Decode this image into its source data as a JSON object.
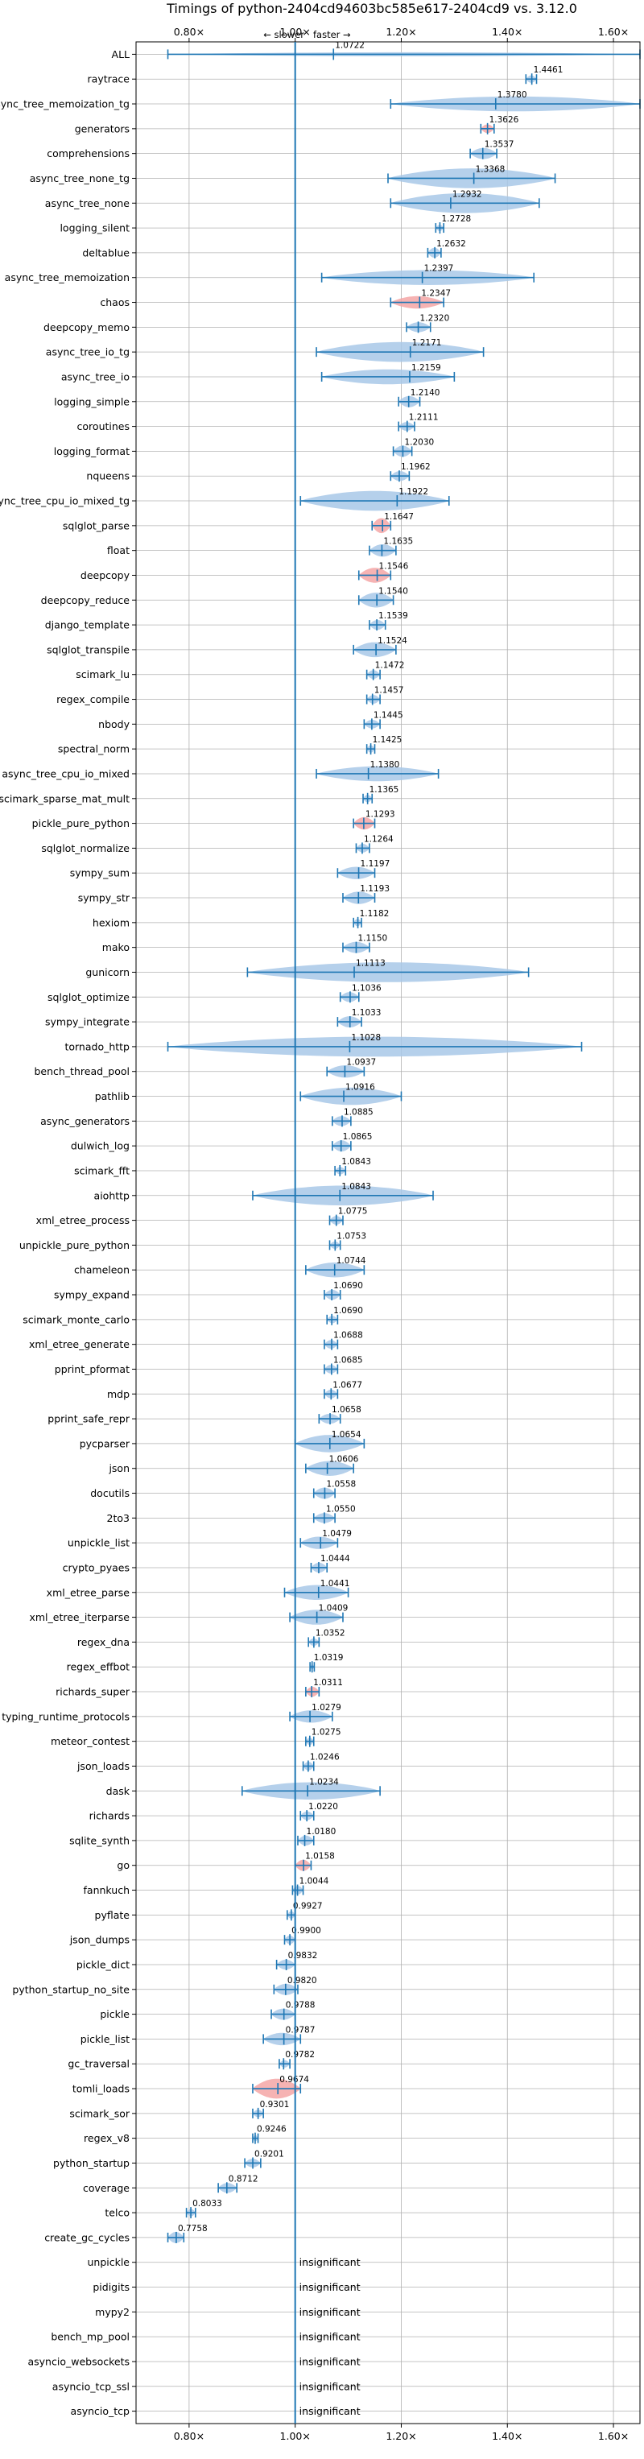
{
  "chart_data": {
    "type": "violin",
    "title": "Timings of python-2404cd94603bc585e617-2404cd9 vs. 3.12.0",
    "annotation_left": "← slower",
    "annotation_right": "faster →",
    "xlim": [
      0.7,
      1.65
    ],
    "xticks": [
      0.8,
      1.0,
      1.2,
      1.4,
      1.6
    ],
    "xtick_labels": [
      "0.80×",
      "1.00×",
      "1.20×",
      "1.40×",
      "1.60×"
    ],
    "grid": true,
    "reference_line": 1.0,
    "colors": {
      "violin": "#a8c8e8",
      "violin_highlight": "#f4a6a6",
      "whisker": "#1f77b4",
      "refline": "#1f77b4",
      "grid": "#b0b0b0"
    },
    "insignificant_label": "insignificant",
    "benchmarks": [
      {
        "name": "ALL",
        "value": 1.0722,
        "lo": 0.76,
        "hi": 1.65,
        "width": 0.09,
        "highlight": false
      },
      {
        "name": "raytrace",
        "value": 1.4461,
        "lo": 1.435,
        "hi": 1.455,
        "width": 0.3,
        "highlight": false
      },
      {
        "name": "async_tree_memoization_tg",
        "value": 1.378,
        "lo": 1.18,
        "hi": 1.65,
        "width": 0.6,
        "highlight": false
      },
      {
        "name": "generators",
        "value": 1.3626,
        "lo": 1.35,
        "hi": 1.375,
        "width": 0.35,
        "highlight": true
      },
      {
        "name": "comprehensions",
        "value": 1.3537,
        "lo": 1.33,
        "hi": 1.38,
        "width": 0.45,
        "highlight": false
      },
      {
        "name": "async_tree_none_tg",
        "value": 1.3368,
        "lo": 1.175,
        "hi": 1.49,
        "width": 0.8,
        "highlight": false
      },
      {
        "name": "async_tree_none",
        "value": 1.2932,
        "lo": 1.18,
        "hi": 1.46,
        "width": 0.8,
        "highlight": false
      },
      {
        "name": "logging_silent",
        "value": 1.2728,
        "lo": 1.265,
        "hi": 1.28,
        "width": 0.25,
        "highlight": false
      },
      {
        "name": "deltablue",
        "value": 1.2632,
        "lo": 1.25,
        "hi": 1.275,
        "width": 0.4,
        "highlight": false
      },
      {
        "name": "async_tree_memoization",
        "value": 1.2397,
        "lo": 1.05,
        "hi": 1.45,
        "width": 0.6,
        "highlight": false
      },
      {
        "name": "chaos",
        "value": 1.2347,
        "lo": 1.18,
        "hi": 1.28,
        "width": 0.5,
        "highlight": true
      },
      {
        "name": "deepcopy_memo",
        "value": 1.232,
        "lo": 1.21,
        "hi": 1.255,
        "width": 0.4,
        "highlight": false
      },
      {
        "name": "async_tree_io_tg",
        "value": 1.2171,
        "lo": 1.04,
        "hi": 1.355,
        "width": 0.8,
        "highlight": false
      },
      {
        "name": "async_tree_io",
        "value": 1.2159,
        "lo": 1.05,
        "hi": 1.3,
        "width": 0.6,
        "highlight": false
      },
      {
        "name": "logging_simple",
        "value": 1.214,
        "lo": 1.195,
        "hi": 1.235,
        "width": 0.45,
        "highlight": false
      },
      {
        "name": "coroutines",
        "value": 1.2111,
        "lo": 1.195,
        "hi": 1.225,
        "width": 0.35,
        "highlight": false
      },
      {
        "name": "logging_format",
        "value": 1.203,
        "lo": 1.185,
        "hi": 1.22,
        "width": 0.45,
        "highlight": false
      },
      {
        "name": "nqueens",
        "value": 1.1962,
        "lo": 1.18,
        "hi": 1.215,
        "width": 0.4,
        "highlight": false
      },
      {
        "name": "async_tree_cpu_io_mixed_tg",
        "value": 1.1922,
        "lo": 1.01,
        "hi": 1.29,
        "width": 0.8,
        "highlight": false
      },
      {
        "name": "sqlglot_parse",
        "value": 1.1647,
        "lo": 1.145,
        "hi": 1.18,
        "width": 0.6,
        "highlight": true
      },
      {
        "name": "float",
        "value": 1.1635,
        "lo": 1.14,
        "hi": 1.19,
        "width": 0.5,
        "highlight": false
      },
      {
        "name": "deepcopy",
        "value": 1.1546,
        "lo": 1.12,
        "hi": 1.18,
        "width": 0.6,
        "highlight": true
      },
      {
        "name": "deepcopy_reduce",
        "value": 1.154,
        "lo": 1.12,
        "hi": 1.185,
        "width": 0.6,
        "highlight": false
      },
      {
        "name": "django_template",
        "value": 1.1539,
        "lo": 1.14,
        "hi": 1.17,
        "width": 0.4,
        "highlight": false
      },
      {
        "name": "sqlglot_transpile",
        "value": 1.1524,
        "lo": 1.11,
        "hi": 1.19,
        "width": 0.6,
        "highlight": false
      },
      {
        "name": "scimark_lu",
        "value": 1.1472,
        "lo": 1.135,
        "hi": 1.16,
        "width": 0.35,
        "highlight": false
      },
      {
        "name": "regex_compile",
        "value": 1.1457,
        "lo": 1.135,
        "hi": 1.16,
        "width": 0.35,
        "highlight": false
      },
      {
        "name": "nbody",
        "value": 1.1445,
        "lo": 1.13,
        "hi": 1.16,
        "width": 0.35,
        "highlight": false
      },
      {
        "name": "spectral_norm",
        "value": 1.1425,
        "lo": 1.135,
        "hi": 1.15,
        "width": 0.3,
        "highlight": false
      },
      {
        "name": "async_tree_cpu_io_mixed",
        "value": 1.138,
        "lo": 1.04,
        "hi": 1.27,
        "width": 0.6,
        "highlight": false
      },
      {
        "name": "scimark_sparse_mat_mult",
        "value": 1.1365,
        "lo": 1.128,
        "hi": 1.145,
        "width": 0.3,
        "highlight": false
      },
      {
        "name": "pickle_pure_python",
        "value": 1.1293,
        "lo": 1.11,
        "hi": 1.15,
        "width": 0.5,
        "highlight": true
      },
      {
        "name": "sqlglot_normalize",
        "value": 1.1264,
        "lo": 1.115,
        "hi": 1.14,
        "width": 0.35,
        "highlight": false
      },
      {
        "name": "sympy_sum",
        "value": 1.1197,
        "lo": 1.08,
        "hi": 1.15,
        "width": 0.5,
        "highlight": false
      },
      {
        "name": "sympy_str",
        "value": 1.1193,
        "lo": 1.09,
        "hi": 1.15,
        "width": 0.5,
        "highlight": false
      },
      {
        "name": "hexiom",
        "value": 1.1182,
        "lo": 1.11,
        "hi": 1.125,
        "width": 0.3,
        "highlight": false
      },
      {
        "name": "mako",
        "value": 1.115,
        "lo": 1.09,
        "hi": 1.14,
        "width": 0.45,
        "highlight": false
      },
      {
        "name": "gunicorn",
        "value": 1.1113,
        "lo": 0.91,
        "hi": 1.44,
        "width": 0.8,
        "highlight": false
      },
      {
        "name": "sqlglot_optimize",
        "value": 1.1036,
        "lo": 1.085,
        "hi": 1.12,
        "width": 0.4,
        "highlight": false
      },
      {
        "name": "sympy_integrate",
        "value": 1.1033,
        "lo": 1.08,
        "hi": 1.125,
        "width": 0.45,
        "highlight": false
      },
      {
        "name": "tornado_http",
        "value": 1.1028,
        "lo": 0.76,
        "hi": 1.54,
        "width": 0.8,
        "highlight": false
      },
      {
        "name": "bench_thread_pool",
        "value": 1.0937,
        "lo": 1.06,
        "hi": 1.13,
        "width": 0.5,
        "highlight": false
      },
      {
        "name": "pathlib",
        "value": 1.0916,
        "lo": 1.01,
        "hi": 1.2,
        "width": 0.7,
        "highlight": false
      },
      {
        "name": "async_generators",
        "value": 1.0885,
        "lo": 1.07,
        "hi": 1.105,
        "width": 0.4,
        "highlight": false
      },
      {
        "name": "dulwich_log",
        "value": 1.0865,
        "lo": 1.07,
        "hi": 1.105,
        "width": 0.45,
        "highlight": false
      },
      {
        "name": "scimark_fft",
        "value": 1.0843,
        "lo": 1.075,
        "hi": 1.095,
        "width": 0.3,
        "highlight": false
      },
      {
        "name": "aiohttp",
        "value": 1.0843,
        "lo": 0.92,
        "hi": 1.26,
        "width": 0.8,
        "highlight": false
      },
      {
        "name": "xml_etree_process",
        "value": 1.0775,
        "lo": 1.065,
        "hi": 1.09,
        "width": 0.35,
        "highlight": false
      },
      {
        "name": "unpickle_pure_python",
        "value": 1.0753,
        "lo": 1.065,
        "hi": 1.085,
        "width": 0.3,
        "highlight": false
      },
      {
        "name": "chameleon",
        "value": 1.0744,
        "lo": 1.02,
        "hi": 1.13,
        "width": 0.6,
        "highlight": false
      },
      {
        "name": "sympy_expand",
        "value": 1.069,
        "lo": 1.055,
        "hi": 1.085,
        "width": 0.4,
        "highlight": false
      },
      {
        "name": "scimark_monte_carlo",
        "value": 1.069,
        "lo": 1.06,
        "hi": 1.08,
        "width": 0.3,
        "highlight": false
      },
      {
        "name": "xml_etree_generate",
        "value": 1.0688,
        "lo": 1.055,
        "hi": 1.08,
        "width": 0.35,
        "highlight": false
      },
      {
        "name": "pprint_pformat",
        "value": 1.0685,
        "lo": 1.055,
        "hi": 1.08,
        "width": 0.35,
        "highlight": false
      },
      {
        "name": "mdp",
        "value": 1.0677,
        "lo": 1.055,
        "hi": 1.08,
        "width": 0.35,
        "highlight": false
      },
      {
        "name": "pprint_safe_repr",
        "value": 1.0658,
        "lo": 1.045,
        "hi": 1.085,
        "width": 0.4,
        "highlight": false
      },
      {
        "name": "pycparser",
        "value": 1.0654,
        "lo": 1.0,
        "hi": 1.13,
        "width": 0.7,
        "highlight": false
      },
      {
        "name": "json",
        "value": 1.0606,
        "lo": 1.02,
        "hi": 1.11,
        "width": 0.6,
        "highlight": false
      },
      {
        "name": "docutils",
        "value": 1.0558,
        "lo": 1.035,
        "hi": 1.075,
        "width": 0.45,
        "highlight": false
      },
      {
        "name": "2to3",
        "value": 1.055,
        "lo": 1.035,
        "hi": 1.075,
        "width": 0.4,
        "highlight": false
      },
      {
        "name": "unpickle_list",
        "value": 1.0479,
        "lo": 1.01,
        "hi": 1.08,
        "width": 0.5,
        "highlight": false
      },
      {
        "name": "crypto_pyaes",
        "value": 1.0444,
        "lo": 1.03,
        "hi": 1.06,
        "width": 0.4,
        "highlight": false
      },
      {
        "name": "xml_etree_parse",
        "value": 1.0441,
        "lo": 0.98,
        "hi": 1.1,
        "width": 0.6,
        "highlight": false
      },
      {
        "name": "xml_etree_iterparse",
        "value": 1.0409,
        "lo": 0.99,
        "hi": 1.09,
        "width": 0.6,
        "highlight": false
      },
      {
        "name": "regex_dna",
        "value": 1.0352,
        "lo": 1.025,
        "hi": 1.045,
        "width": 0.3,
        "highlight": false
      },
      {
        "name": "regex_effbot",
        "value": 1.0319,
        "lo": 1.028,
        "hi": 1.036,
        "width": 0.2,
        "highlight": false
      },
      {
        "name": "richards_super",
        "value": 1.0311,
        "lo": 1.02,
        "hi": 1.045,
        "width": 0.4,
        "highlight": true
      },
      {
        "name": "typing_runtime_protocols",
        "value": 1.0279,
        "lo": 0.99,
        "hi": 1.07,
        "width": 0.5,
        "highlight": false
      },
      {
        "name": "meteor_contest",
        "value": 1.0275,
        "lo": 1.02,
        "hi": 1.035,
        "width": 0.3,
        "highlight": false
      },
      {
        "name": "json_loads",
        "value": 1.0246,
        "lo": 1.015,
        "hi": 1.035,
        "width": 0.35,
        "highlight": false
      },
      {
        "name": "dask",
        "value": 1.0234,
        "lo": 0.9,
        "hi": 1.16,
        "width": 0.7,
        "highlight": false
      },
      {
        "name": "richards",
        "value": 1.022,
        "lo": 1.01,
        "hi": 1.035,
        "width": 0.35,
        "highlight": false
      },
      {
        "name": "sqlite_synth",
        "value": 1.018,
        "lo": 1.005,
        "hi": 1.035,
        "width": 0.4,
        "highlight": false
      },
      {
        "name": "go",
        "value": 1.0158,
        "lo": 1.0,
        "hi": 1.03,
        "width": 0.45,
        "highlight": true
      },
      {
        "name": "fannkuch",
        "value": 1.0044,
        "lo": 0.995,
        "hi": 1.015,
        "width": 0.35,
        "highlight": false
      },
      {
        "name": "pyflate",
        "value": 0.9927,
        "lo": 0.985,
        "hi": 1.0,
        "width": 0.3,
        "highlight": false
      },
      {
        "name": "json_dumps",
        "value": 0.99,
        "lo": 0.98,
        "hi": 1.0,
        "width": 0.35,
        "highlight": false
      },
      {
        "name": "pickle_dict",
        "value": 0.9832,
        "lo": 0.965,
        "hi": 1.0,
        "width": 0.4,
        "highlight": false
      },
      {
        "name": "python_startup_no_site",
        "value": 0.982,
        "lo": 0.96,
        "hi": 1.005,
        "width": 0.45,
        "highlight": false
      },
      {
        "name": "pickle",
        "value": 0.9788,
        "lo": 0.955,
        "hi": 1.0,
        "width": 0.45,
        "highlight": false
      },
      {
        "name": "pickle_list",
        "value": 0.9787,
        "lo": 0.94,
        "hi": 1.01,
        "width": 0.5,
        "highlight": false
      },
      {
        "name": "gc_traversal",
        "value": 0.9782,
        "lo": 0.97,
        "hi": 0.99,
        "width": 0.3,
        "highlight": false
      },
      {
        "name": "tomli_loads",
        "value": 0.9674,
        "lo": 0.92,
        "hi": 1.01,
        "width": 0.8,
        "highlight": true
      },
      {
        "name": "scimark_sor",
        "value": 0.9301,
        "lo": 0.92,
        "hi": 0.94,
        "width": 0.3,
        "highlight": false
      },
      {
        "name": "regex_v8",
        "value": 0.9246,
        "lo": 0.92,
        "hi": 0.93,
        "width": 0.25,
        "highlight": false
      },
      {
        "name": "python_startup",
        "value": 0.9201,
        "lo": 0.905,
        "hi": 0.935,
        "width": 0.35,
        "highlight": false
      },
      {
        "name": "coverage",
        "value": 0.8712,
        "lo": 0.855,
        "hi": 0.89,
        "width": 0.4,
        "highlight": false
      },
      {
        "name": "telco",
        "value": 0.8033,
        "lo": 0.795,
        "hi": 0.812,
        "width": 0.3,
        "highlight": false
      },
      {
        "name": "create_gc_cycles",
        "value": 0.7758,
        "lo": 0.76,
        "hi": 0.79,
        "width": 0.45,
        "highlight": false
      },
      {
        "name": "unpickle",
        "value": null,
        "insignificant": true
      },
      {
        "name": "pidigits",
        "value": null,
        "insignificant": true
      },
      {
        "name": "mypy2",
        "value": null,
        "insignificant": true
      },
      {
        "name": "bench_mp_pool",
        "value": null,
        "insignificant": true
      },
      {
        "name": "asyncio_websockets",
        "value": null,
        "insignificant": true
      },
      {
        "name": "asyncio_tcp_ssl",
        "value": null,
        "insignificant": true
      },
      {
        "name": "asyncio_tcp",
        "value": null,
        "insignificant": true
      }
    ]
  }
}
